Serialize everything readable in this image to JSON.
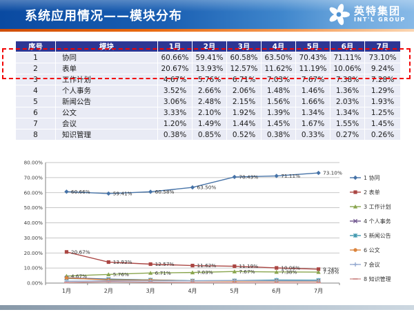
{
  "slide": {
    "title": "系统应用情况——模块分布",
    "logo": {
      "name": "英特集团",
      "subtitle": "INT'L GROUP"
    }
  },
  "table": {
    "headers": [
      "序号",
      "模块",
      "1月",
      "2月",
      "3月",
      "4月",
      "5月",
      "6月",
      "7月"
    ],
    "rows": [
      {
        "no": "1",
        "module": "协同",
        "values": [
          "60.66%",
          "59.41%",
          "60.58%",
          "63.50%",
          "70.43%",
          "71.11%",
          "73.10%"
        ]
      },
      {
        "no": "2",
        "module": "表单",
        "values": [
          "20.67%",
          "13.93%",
          "12.57%",
          "11.62%",
          "11.19%",
          "10.06%",
          "9.24%"
        ]
      },
      {
        "no": "3",
        "module": "工作计划",
        "values": [
          "4.67%",
          "5.76%",
          "6.71%",
          "7.03%",
          "7.67%",
          "7.38%",
          "7.28%"
        ]
      },
      {
        "no": "4",
        "module": "个人事务",
        "values": [
          "3.52%",
          "2.66%",
          "2.06%",
          "1.48%",
          "1.46%",
          "1.36%",
          "1.29%"
        ]
      },
      {
        "no": "5",
        "module": "新闻公告",
        "values": [
          "3.06%",
          "2.48%",
          "2.15%",
          "1.56%",
          "1.66%",
          "2.03%",
          "1.93%"
        ]
      },
      {
        "no": "6",
        "module": "公文",
        "values": [
          "3.33%",
          "2.10%",
          "1.92%",
          "1.39%",
          "1.34%",
          "1.34%",
          "1.25%"
        ]
      },
      {
        "no": "7",
        "module": "会议",
        "values": [
          "1.20%",
          "1.49%",
          "1.44%",
          "1.45%",
          "1.67%",
          "1.55%",
          "1.45%"
        ]
      },
      {
        "no": "8",
        "module": "知识管理",
        "values": [
          "0.38%",
          "0.85%",
          "0.52%",
          "0.38%",
          "0.33%",
          "0.27%",
          "0.26%"
        ]
      }
    ]
  },
  "chart_data": {
    "type": "line",
    "categories": [
      "1月",
      "2月",
      "3月",
      "4月",
      "5月",
      "6月",
      "7月"
    ],
    "series": [
      {
        "name": "1 协同",
        "color": "#4572a7",
        "marker": "diamond",
        "show_labels": true,
        "values": [
          60.66,
          59.41,
          60.58,
          63.5,
          70.43,
          71.11,
          73.1
        ]
      },
      {
        "name": "2 表单",
        "color": "#aa4643",
        "marker": "square",
        "show_labels": true,
        "values": [
          20.67,
          13.93,
          12.57,
          11.62,
          11.19,
          10.06,
          9.24
        ]
      },
      {
        "name": "3 工作计划",
        "color": "#89a54e",
        "marker": "triangle",
        "show_labels": true,
        "values": [
          4.67,
          5.76,
          6.71,
          7.03,
          7.67,
          7.38,
          7.28
        ]
      },
      {
        "name": "4 个人事务",
        "color": "#71588f",
        "marker": "x",
        "show_labels": false,
        "values": [
          3.52,
          2.66,
          2.06,
          1.48,
          1.46,
          1.36,
          1.29
        ]
      },
      {
        "name": "5 新闻公告",
        "color": "#4198af",
        "marker": "asterisk",
        "show_labels": false,
        "values": [
          3.06,
          2.48,
          2.15,
          1.56,
          1.66,
          2.03,
          1.93
        ]
      },
      {
        "name": "6 公文",
        "color": "#db843d",
        "marker": "circle",
        "show_labels": false,
        "values": [
          3.33,
          2.1,
          1.92,
          1.39,
          1.34,
          1.34,
          1.25
        ]
      },
      {
        "name": "7 会议",
        "color": "#93a9cf",
        "marker": "plus",
        "show_labels": false,
        "values": [
          1.2,
          1.49,
          1.44,
          1.45,
          1.67,
          1.55,
          1.45
        ]
      },
      {
        "name": "8 知识管理",
        "color": "#d19392",
        "marker": "dash",
        "show_labels": false,
        "values": [
          0.38,
          0.85,
          0.52,
          0.38,
          0.33,
          0.27,
          0.26
        ]
      }
    ],
    "ylim": [
      0,
      80
    ],
    "ytick_step": 10,
    "ytick_format": "0.00%",
    "grid": true,
    "legend_position": "right"
  }
}
